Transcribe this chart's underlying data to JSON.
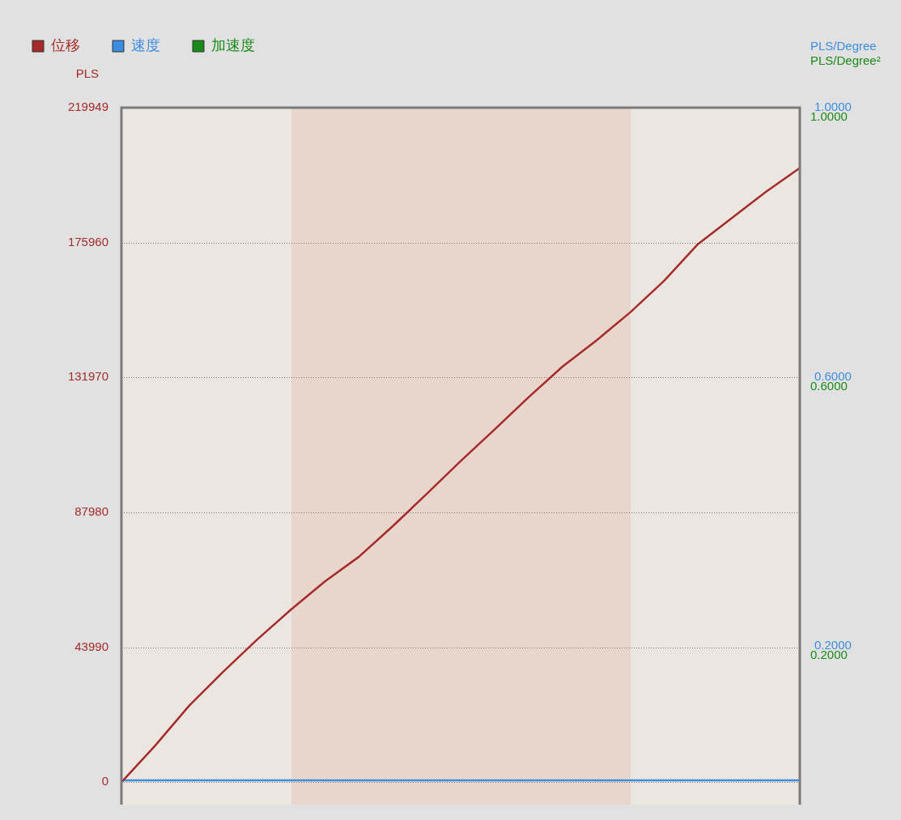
{
  "chart_data": {
    "type": "line",
    "ylabel": "PLS",
    "y2label": "PLS/Degree",
    "y3label": "PLS/Degree²",
    "categories": [
      null,
      null,
      null,
      null,
      null,
      null,
      null,
      null,
      null,
      null,
      null,
      null,
      null,
      null,
      null,
      null,
      null,
      null,
      null,
      null,
      null
    ],
    "series": [
      {
        "name": "位移",
        "color": "#a52a2a",
        "values": [
          0,
          12000,
          25000,
          36000,
          46500,
          56300,
          65500,
          73500,
          83500,
          94000,
          104700,
          115000,
          125500,
          135500,
          144000,
          153200,
          163500,
          175500,
          184000,
          192500,
          200300
        ]
      },
      {
        "name": "速度",
        "color": "#3c8ce0",
        "axis": "y2",
        "values": [
          0,
          0,
          0,
          0,
          0,
          0,
          0,
          0,
          0,
          0,
          0,
          0,
          0,
          0,
          0,
          0,
          0,
          0,
          0,
          0,
          0
        ]
      },
      {
        "name": "加速度",
        "color": "#1a8a1a",
        "axis": "y3",
        "values": [
          null,
          null,
          null,
          null,
          null,
          null,
          null,
          null,
          null,
          null,
          null,
          null,
          null,
          null,
          null,
          null,
          null,
          null,
          null,
          null,
          null
        ]
      }
    ],
    "ylim": [
      -7300,
      219949
    ],
    "yticks": [
      0,
      43990,
      87980,
      131970,
      175960,
      219949
    ],
    "y2lim": [
      -0.036,
      1
    ],
    "y2ticks": [
      {
        "value": 0.2,
        "label": "0.2000"
      },
      {
        "value": 0.6,
        "label": "0.6000"
      },
      {
        "value": 1,
        "label": "1.0000"
      }
    ],
    "y3lim": [
      -0.036,
      1
    ],
    "y3ticks": [
      {
        "value": 0.2,
        "label": "0.2000"
      },
      {
        "value": 0.6,
        "label": "0.6000"
      },
      {
        "value": 1,
        "label": "1.0000"
      }
    ],
    "grid": "y",
    "legend": "top left",
    "tick_labels": "y",
    "marker": "none",
    "line_style": "solid"
  }
}
